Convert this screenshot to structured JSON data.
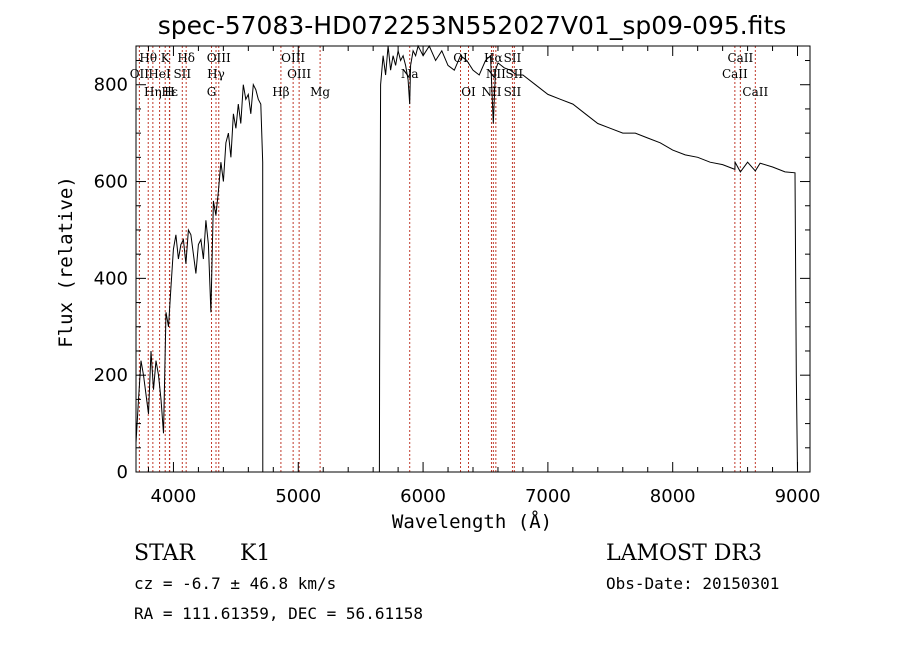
{
  "chart_data": {
    "type": "line",
    "title": "spec-57083-HD072253N552027V01_sp09-095.fits",
    "xlabel": "Wavelength (Å)",
    "ylabel": "Flux (relative)",
    "xlim": [
      3700,
      9100
    ],
    "ylim": [
      0,
      880
    ],
    "x_ticks": [
      4000,
      5000,
      6000,
      7000,
      8000,
      9000
    ],
    "y_ticks": [
      0,
      200,
      400,
      600,
      800
    ],
    "grid": false,
    "series": [
      {
        "x": [
          3700,
          3720,
          3740,
          3760,
          3780,
          3800,
          3820,
          3840,
          3860,
          3880,
          3900,
          3920,
          3940,
          3960,
          3980,
          4000,
          4020,
          4040,
          4060,
          4080,
          4100,
          4120,
          4140,
          4160,
          4180,
          4200,
          4220,
          4240,
          4260,
          4280,
          4300,
          4320,
          4340,
          4360,
          4380,
          4400,
          4420,
          4440,
          4460,
          4480,
          4500,
          4520,
          4540,
          4560,
          4580,
          4600,
          4620,
          4640,
          4660,
          4680,
          4700,
          4715,
          4716,
          5650,
          5652,
          5660,
          5680,
          5700,
          5720,
          5740,
          5760,
          5780,
          5800,
          5820,
          5840,
          5860,
          5880,
          5893,
          5900,
          5920,
          5940,
          5960,
          5980,
          6000,
          6050,
          6100,
          6150,
          6200,
          6250,
          6300,
          6350,
          6400,
          6450,
          6500,
          6540,
          6563,
          6580,
          6600,
          6650,
          6700,
          6750,
          6800,
          6900,
          7000,
          7100,
          7200,
          7300,
          7400,
          7500,
          7600,
          7700,
          7800,
          7900,
          8000,
          8100,
          8200,
          8300,
          8400,
          8498,
          8500,
          8542,
          8600,
          8662,
          8700,
          8800,
          8900,
          8980,
          8990,
          9000
        ],
        "values": [
          60,
          150,
          230,
          200,
          160,
          120,
          250,
          170,
          230,
          200,
          150,
          80,
          330,
          300,
          380,
          460,
          490,
          440,
          470,
          480,
          430,
          500,
          490,
          450,
          410,
          470,
          480,
          440,
          520,
          470,
          330,
          560,
          530,
          580,
          640,
          600,
          680,
          700,
          650,
          740,
          710,
          760,
          720,
          800,
          770,
          780,
          740,
          800,
          790,
          770,
          760,
          640,
          0,
          0,
          220,
          800,
          860,
          820,
          880,
          830,
          860,
          840,
          870,
          850,
          860,
          840,
          810,
          760,
          840,
          870,
          860,
          880,
          870,
          860,
          880,
          850,
          870,
          840,
          830,
          860,
          850,
          830,
          820,
          850,
          860,
          720,
          830,
          845,
          835,
          830,
          820,
          820,
          800,
          780,
          770,
          760,
          740,
          720,
          710,
          700,
          700,
          690,
          680,
          665,
          655,
          650,
          640,
          635,
          625,
          640,
          620,
          640,
          622,
          638,
          630,
          620,
          618,
          200,
          0
        ]
      }
    ],
    "line_markers": [
      {
        "label": "Hθ",
        "x": 3798,
        "row": 1
      },
      {
        "label": "OII",
        "x": 3727,
        "row": 2
      },
      {
        "label": "Hη",
        "x": 3835,
        "row": 3
      },
      {
        "label": "Hε",
        "x": 3970,
        "row": 3
      },
      {
        "label": "K",
        "x": 3934,
        "row": 1
      },
      {
        "label": "HeI",
        "x": 3889,
        "row": 2
      },
      {
        "label": "H",
        "x": 3968,
        "row": 3
      },
      {
        "label": "SII",
        "x": 4071,
        "row": 2
      },
      {
        "label": "Hδ",
        "x": 4102,
        "row": 1
      },
      {
        "label": "OIII",
        "x": 4363,
        "row": 1
      },
      {
        "label": "Hγ",
        "x": 4341,
        "row": 2
      },
      {
        "label": "G",
        "x": 4305,
        "row": 3
      },
      {
        "label": "OIII",
        "x": 4959,
        "row": 1
      },
      {
        "label": "OIII",
        "x": 5007,
        "row": 2
      },
      {
        "label": "Hβ",
        "x": 4861,
        "row": 3
      },
      {
        "label": "Mg",
        "x": 5175,
        "row": 3
      },
      {
        "label": "Na",
        "x": 5893,
        "row": 2
      },
      {
        "label": "OI",
        "x": 6300,
        "row": 1
      },
      {
        "label": "OI",
        "x": 6364,
        "row": 3
      },
      {
        "label": "Hα",
        "x": 6563,
        "row": 1
      },
      {
        "label": "SII",
        "x": 6716,
        "row": 1
      },
      {
        "label": "NII",
        "x": 6583,
        "row": 2
      },
      {
        "label": "SII",
        "x": 6731,
        "row": 2
      },
      {
        "label": "NII",
        "x": 6548,
        "row": 3
      },
      {
        "label": "SII",
        "x": 6716,
        "row": 3
      },
      {
        "label": "CaII",
        "x": 8542,
        "row": 1
      },
      {
        "label": "CaII",
        "x": 8498,
        "row": 2
      },
      {
        "label": "CaII",
        "x": 8662,
        "row": 3
      }
    ]
  },
  "info": {
    "object_class": "STAR",
    "subclass": "K1",
    "survey": "LAMOST DR3",
    "cz": "cz = -6.7 ± 46.8 km/s",
    "obs_date": "Obs-Date: 20150301",
    "coords": "RA = 111.61359, DEC =  56.61158"
  }
}
